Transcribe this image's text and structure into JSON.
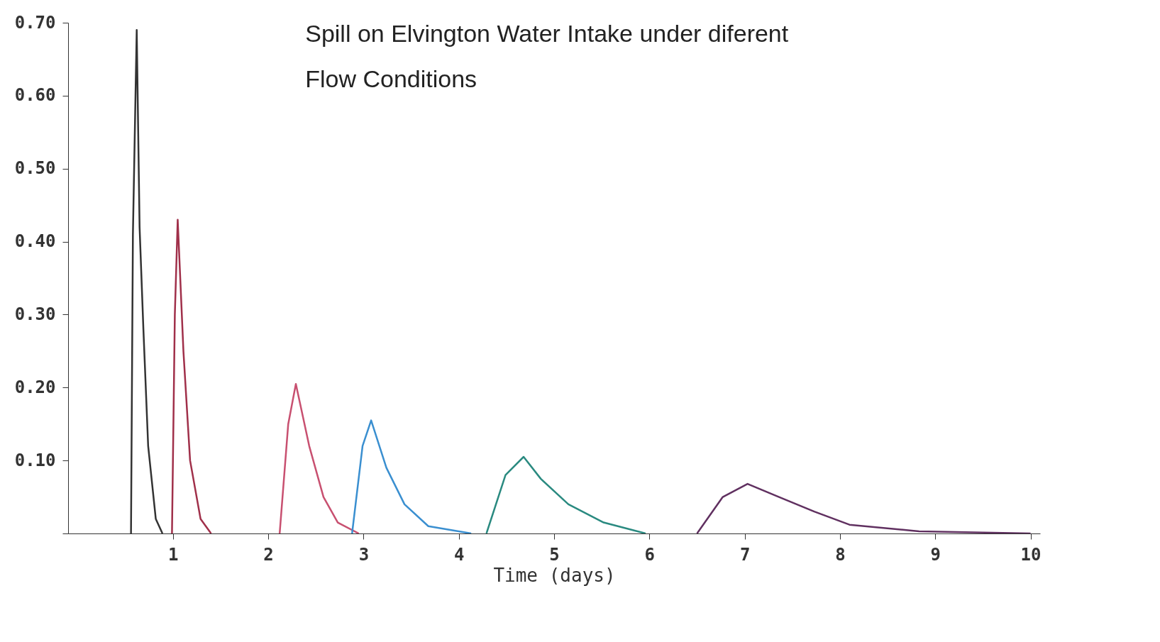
{
  "chart_data": {
    "type": "line",
    "title": "Spill on Elvington Water Intake under diferent",
    "subtitle": "Flow Conditions",
    "xlabel": "Time (days)",
    "xlim": [
      -0.1,
      10.1
    ],
    "ylim": [
      0,
      0.7
    ],
    "xticks": [
      1,
      2,
      3,
      4,
      5,
      6,
      7,
      8,
      9,
      10
    ],
    "yticks": [
      {
        "value": 0,
        "label": null
      },
      {
        "value": 0.1,
        "label": "0.10"
      },
      {
        "value": 0.2,
        "label": "0.20"
      },
      {
        "value": 0.3,
        "label": "0.30"
      },
      {
        "value": 0.4,
        "label": "0.40"
      },
      {
        "value": 0.5,
        "label": "0.50"
      },
      {
        "value": 0.6,
        "label": "0.60"
      },
      {
        "value": 0.7,
        "label": "0.70"
      }
    ],
    "grid": false,
    "marker": "none",
    "line_style": "solid",
    "series": [
      {
        "color": "#333333",
        "x": [
          0.56,
          0.58,
          0.62,
          0.65,
          0.69,
          0.74,
          0.82,
          0.89
        ],
        "values": [
          0,
          0.41,
          0.69,
          0.42,
          0.28,
          0.12,
          0.02,
          0
        ]
      },
      {
        "color": "#a0304a",
        "x": [
          0.99,
          1.02,
          1.05,
          1.11,
          1.18,
          1.29,
          1.4
        ],
        "values": [
          0,
          0.3,
          0.43,
          0.25,
          0.1,
          0.02,
          0
        ]
      },
      {
        "color": "#c85070",
        "x": [
          2.12,
          2.21,
          2.29,
          2.43,
          2.58,
          2.73,
          2.95
        ],
        "values": [
          0,
          0.15,
          0.205,
          0.12,
          0.05,
          0.015,
          0
        ]
      },
      {
        "color": "#3a8fd0",
        "x": [
          2.88,
          2.99,
          3.08,
          3.24,
          3.43,
          3.68,
          4.13
        ],
        "values": [
          0,
          0.12,
          0.155,
          0.09,
          0.04,
          0.01,
          0
        ]
      },
      {
        "color": "#2a8a80",
        "x": [
          4.29,
          4.49,
          4.68,
          4.86,
          5.15,
          5.52,
          5.96
        ],
        "values": [
          0,
          0.08,
          0.105,
          0.075,
          0.04,
          0.015,
          0
        ]
      },
      {
        "color": "#603060",
        "x": [
          6.5,
          6.77,
          7.03,
          7.36,
          7.73,
          8.1,
          8.83,
          10.0
        ],
        "values": [
          0,
          0.05,
          0.068,
          0.05,
          0.03,
          0.012,
          0.003,
          0
        ]
      }
    ]
  }
}
